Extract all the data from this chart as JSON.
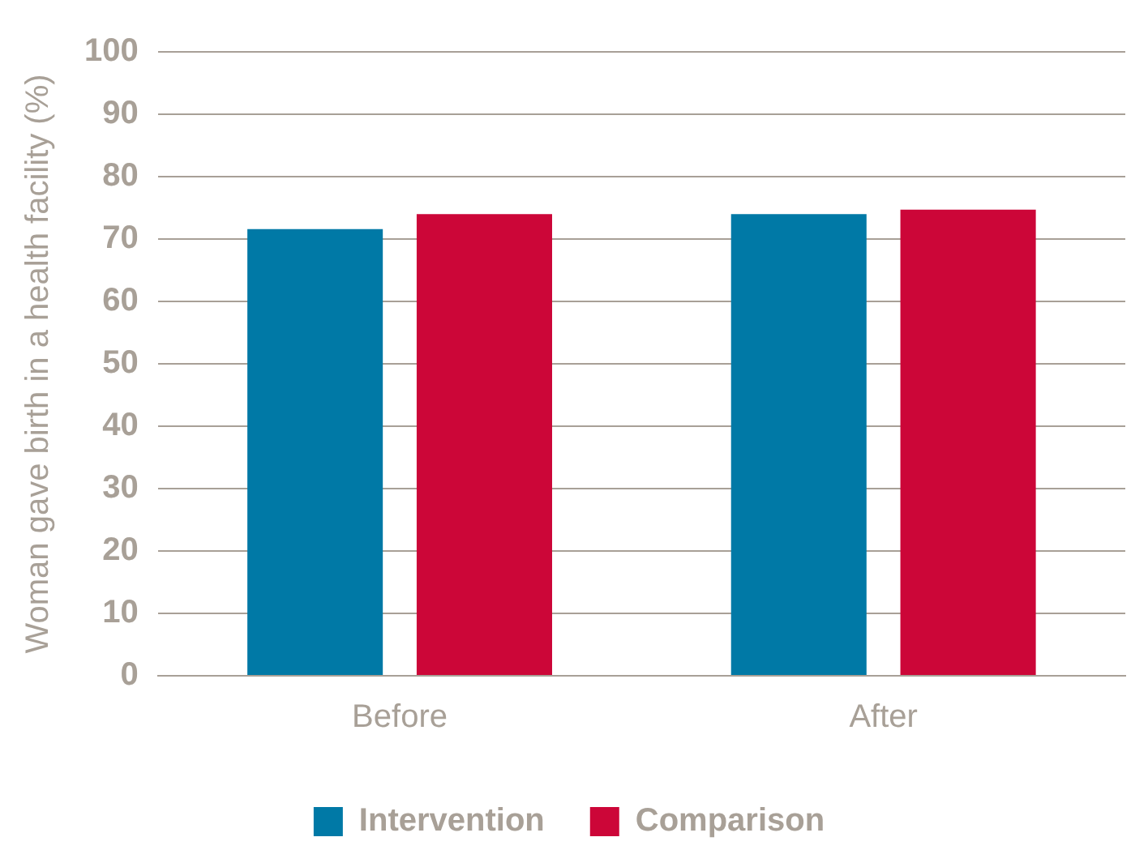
{
  "chart_data": {
    "type": "bar",
    "ylabel": "Woman gave birth in a health facility (%)",
    "categories": [
      "Before",
      "After"
    ],
    "series": [
      {
        "name": "Intervention",
        "color": "#0079a6",
        "values": [
          71.6,
          74.0
        ]
      },
      {
        "name": "Comparison",
        "color": "#cc0638",
        "values": [
          74.0,
          74.7
        ]
      }
    ],
    "ylim": [
      0,
      100
    ],
    "yticks": [
      0,
      10,
      20,
      30,
      40,
      50,
      60,
      70,
      80,
      90,
      100
    ],
    "grid": "y",
    "legend": "bottom"
  }
}
